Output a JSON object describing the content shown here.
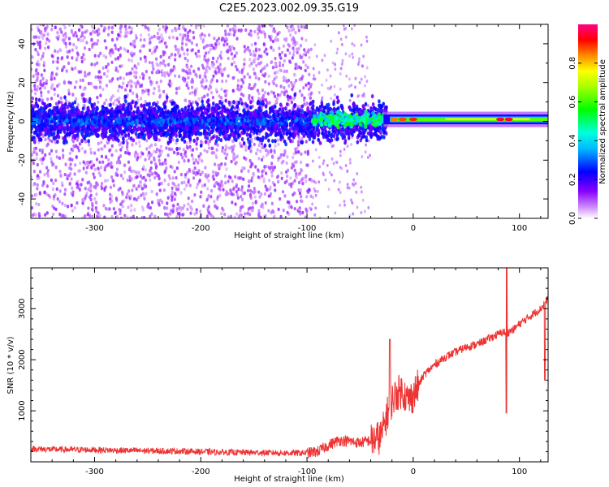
{
  "figure": {
    "title": "C2E5.2023.002.09.35.G19"
  },
  "chart_data": [
    {
      "type": "heatmap",
      "title": "C2E5.2023.002.09.35.G19",
      "xlabel": "Height of straight line (km)",
      "ylabel": "Frequency (Hz)",
      "xlim": [
        -360,
        127
      ],
      "ylim": [
        -50,
        50
      ],
      "x_ticks": [
        -300,
        -200,
        -100,
        0,
        100
      ],
      "y_ticks": [
        -40,
        -20,
        0,
        20,
        40
      ],
      "colorbar": {
        "label": "Normalized spectral amplitude",
        "range": [
          0,
          1
        ],
        "ticks": [
          0.0,
          0.2,
          0.4,
          0.6,
          0.8
        ],
        "colormap": [
          "#ffffff",
          "#8800ff",
          "#0000ff",
          "#00ffff",
          "#00ff00",
          "#ffff00",
          "#ff8800",
          "#ff0000",
          "#ff0088"
        ]
      },
      "regions": [
        {
          "x_range": [
            -360,
            -95
          ],
          "description": "scattered noise, amplitude 0.05-0.3, dense band near 0 Hz of width +/-8 Hz"
        },
        {
          "x_range": [
            -95,
            -25
          ],
          "description": "transition, band of amplitude 0.3-0.6 near 0 Hz"
        },
        {
          "x_range": [
            -25,
            127
          ],
          "description": "clean carrier at ~1 Hz, amplitude 0.6-1.0, peak near x=85"
        }
      ],
      "grid": false
    },
    {
      "type": "line",
      "xlabel": "Height of straight line (km)",
      "ylabel": "SNR (10 * v/v)",
      "xlim": [
        -360,
        127
      ],
      "ylim": [
        0,
        3800
      ],
      "x_ticks": [
        -300,
        -200,
        -100,
        0,
        100
      ],
      "y_ticks": [
        1000,
        2000,
        3000
      ],
      "series": [
        {
          "color": "#ee3333",
          "x": [
            -360,
            -340,
            -320,
            -300,
            -280,
            -260,
            -240,
            -220,
            -200,
            -180,
            -160,
            -140,
            -120,
            -100,
            -90,
            -80,
            -70,
            -60,
            -50,
            -40,
            -30,
            -25,
            -20,
            -15,
            -10,
            -5,
            0,
            5,
            10,
            20,
            30,
            40,
            50,
            60,
            70,
            80,
            85,
            88,
            90,
            95,
            100,
            110,
            120,
            127
          ],
          "values": [
            230,
            220,
            215,
            210,
            200,
            195,
            190,
            185,
            175,
            165,
            160,
            155,
            150,
            150,
            180,
            300,
            400,
            380,
            350,
            400,
            500,
            900,
            1200,
            1350,
            1400,
            1200,
            1300,
            1500,
            1700,
            1900,
            2050,
            2150,
            2250,
            2300,
            2400,
            2500,
            2550,
            2500,
            2550,
            2600,
            2700,
            2850,
            3000,
            3200
          ]
        }
      ],
      "grid": false
    }
  ]
}
